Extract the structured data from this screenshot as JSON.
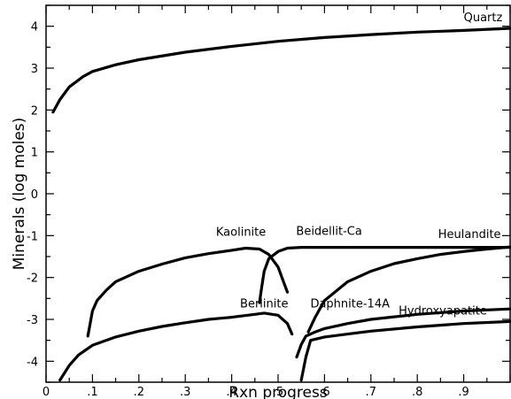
{
  "chart_data": {
    "type": "line",
    "title": "",
    "xlabel": "Rxn progress",
    "ylabel": "Minerals (log moles)",
    "xlim": [
      0,
      1
    ],
    "ylim": [
      -4.5,
      4.5
    ],
    "x_ticks": [
      0,
      0.1,
      0.2,
      0.3,
      0.4,
      0.5,
      0.6,
      0.7,
      0.8,
      0.9
    ],
    "x_tick_labels": [
      "0",
      ".1",
      ".2",
      ".3",
      ".4",
      ".5",
      ".6",
      ".7",
      ".8",
      ".9"
    ],
    "y_ticks": [
      4,
      3,
      2,
      1,
      0,
      -1,
      -2,
      -3,
      -4
    ],
    "y_tick_labels": [
      "4",
      "3",
      "2",
      "1",
      "0",
      "-1",
      "-2",
      "-3",
      "-4"
    ],
    "grid": false,
    "legend": "none",
    "series": [
      {
        "name": "Quartz",
        "x": [
          0.015,
          0.03,
          0.05,
          0.08,
          0.1,
          0.15,
          0.2,
          0.3,
          0.4,
          0.5,
          0.6,
          0.7,
          0.8,
          0.9,
          1.0
        ],
        "y": [
          1.95,
          2.25,
          2.55,
          2.8,
          2.92,
          3.08,
          3.2,
          3.38,
          3.52,
          3.64,
          3.73,
          3.8,
          3.86,
          3.9,
          3.95
        ]
      },
      {
        "name": "Kaolinite",
        "x": [
          0.09,
          0.1,
          0.11,
          0.13,
          0.15,
          0.2,
          0.25,
          0.3,
          0.35,
          0.4,
          0.43,
          0.46,
          0.48,
          0.5,
          0.51,
          0.52
        ],
        "y": [
          -3.4,
          -2.8,
          -2.55,
          -2.3,
          -2.1,
          -1.85,
          -1.68,
          -1.53,
          -1.43,
          -1.35,
          -1.3,
          -1.32,
          -1.45,
          -1.75,
          -2.05,
          -2.35
        ]
      },
      {
        "name": "Beidellit-Ca",
        "x": [
          0.46,
          0.465,
          0.47,
          0.48,
          0.5,
          0.52,
          0.55,
          0.6,
          0.7,
          0.8,
          0.9,
          1.0
        ],
        "y": [
          -2.6,
          -2.2,
          -1.85,
          -1.55,
          -1.38,
          -1.3,
          -1.28,
          -1.28,
          -1.28,
          -1.28,
          -1.28,
          -1.28
        ]
      },
      {
        "name": "Heulandite",
        "x": [
          0.565,
          0.58,
          0.6,
          0.65,
          0.7,
          0.75,
          0.8,
          0.85,
          0.9,
          0.95,
          1.0
        ],
        "y": [
          -3.3,
          -2.95,
          -2.55,
          -2.1,
          -1.85,
          -1.67,
          -1.55,
          -1.45,
          -1.38,
          -1.32,
          -1.27
        ]
      },
      {
        "name": "Berlinite",
        "x": [
          0.03,
          0.05,
          0.07,
          0.1,
          0.15,
          0.2,
          0.25,
          0.3,
          0.35,
          0.4,
          0.45,
          0.47,
          0.5,
          0.52,
          0.53
        ],
        "y": [
          -4.45,
          -4.1,
          -3.85,
          -3.62,
          -3.42,
          -3.28,
          -3.17,
          -3.08,
          -3.0,
          -2.95,
          -2.88,
          -2.85,
          -2.9,
          -3.1,
          -3.35
        ]
      },
      {
        "name": "Daphnite-14A",
        "x": [
          0.54,
          0.55,
          0.56,
          0.58,
          0.6,
          0.65,
          0.7,
          0.8,
          0.9,
          1.0
        ],
        "y": [
          -3.9,
          -3.6,
          -3.4,
          -3.3,
          -3.22,
          -3.1,
          -3.0,
          -2.88,
          -2.8,
          -2.75
        ]
      },
      {
        "name": "Hydroxyapatite",
        "x": [
          0.55,
          0.56,
          0.57,
          0.6,
          0.65,
          0.7,
          0.8,
          0.9,
          1.0
        ],
        "y": [
          -4.45,
          -3.9,
          -3.5,
          -3.42,
          -3.35,
          -3.28,
          -3.18,
          -3.1,
          -3.05
        ]
      }
    ]
  }
}
